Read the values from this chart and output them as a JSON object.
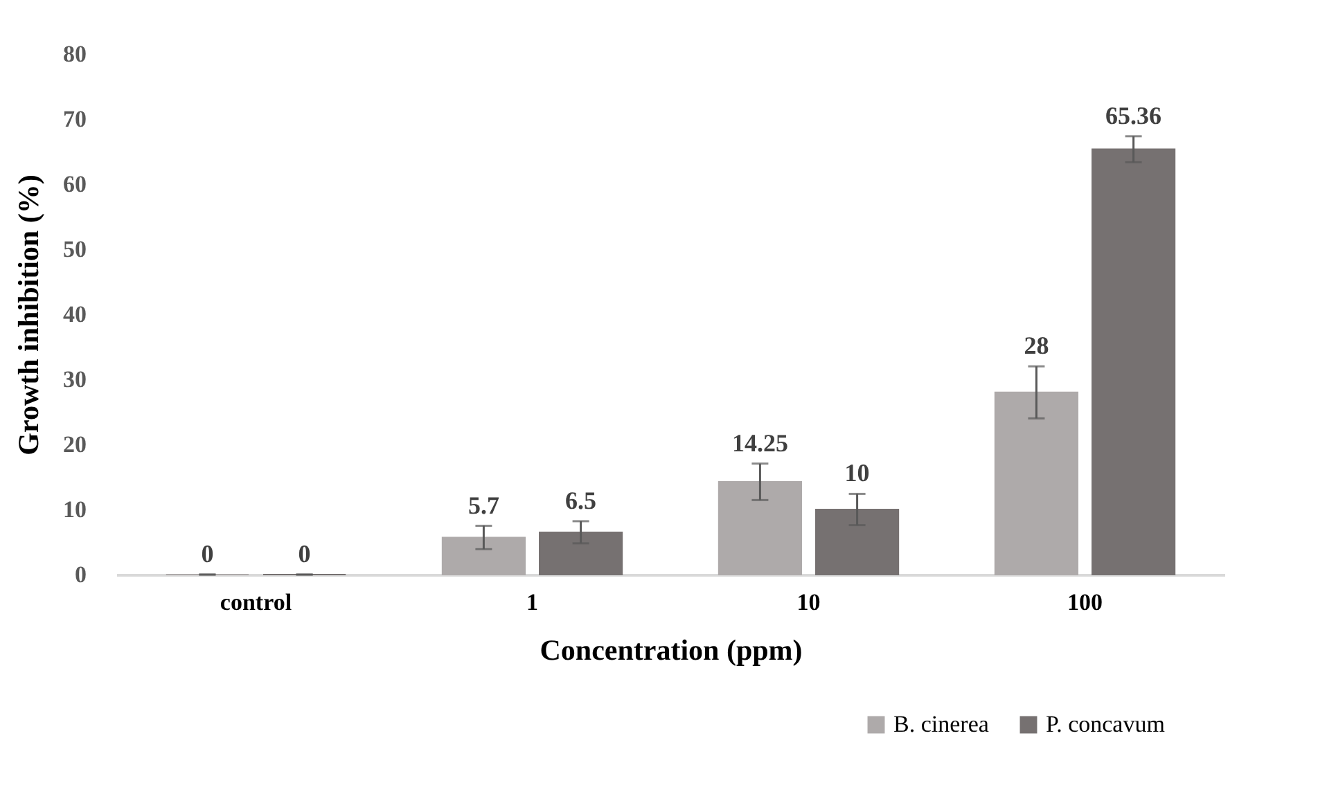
{
  "chart_data": {
    "type": "bar",
    "xlabel": "Concentration (ppm)",
    "ylabel": "Growth inhibition (%)",
    "categories": [
      "control",
      "1",
      "10",
      "100"
    ],
    "series": [
      {
        "name": "B. cinerea",
        "color": "#aeaaaa",
        "values": [
          0,
          5.7,
          14.25,
          28
        ],
        "errors": [
          0,
          1.8,
          2.8,
          4
        ]
      },
      {
        "name": "P. concavum",
        "color": "#767171",
        "values": [
          0,
          6.5,
          10,
          65.36
        ],
        "errors": [
          0,
          1.7,
          2.4,
          2
        ]
      }
    ],
    "ylim": [
      0,
      80
    ],
    "yticks": [
      0,
      10,
      20,
      30,
      40,
      50,
      60,
      70,
      80
    ],
    "grid": false,
    "legend": "bottom right",
    "data_labels": true
  }
}
